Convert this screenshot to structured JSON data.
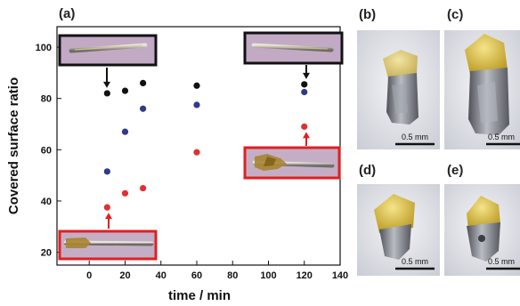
{
  "chart_data": {
    "type": "scatter",
    "panel_label": "(a)",
    "xlabel": "time / min",
    "ylabel": "Covered surface ratio",
    "xlim": [
      -18,
      140
    ],
    "ylim": [
      15,
      108
    ],
    "x_ticks": [
      0,
      20,
      40,
      60,
      80,
      100,
      120,
      140
    ],
    "y_ticks": [
      20,
      40,
      60,
      80,
      100
    ],
    "series": [
      {
        "color": "#111111",
        "points": [
          [
            10,
            82
          ],
          [
            20,
            83
          ],
          [
            30,
            86
          ],
          [
            60,
            85
          ],
          [
            120,
            85.5
          ]
        ]
      },
      {
        "color": "#2e3a8c",
        "points": [
          [
            10,
            51.5
          ],
          [
            20,
            67
          ],
          [
            30,
            76
          ],
          [
            60,
            77.5
          ],
          [
            120,
            82.5
          ]
        ]
      },
      {
        "color": "#e03030",
        "points": [
          [
            10,
            37.5
          ],
          [
            20,
            43
          ],
          [
            30,
            45
          ],
          [
            60,
            59
          ],
          [
            120,
            69
          ]
        ]
      }
    ],
    "grid": false,
    "legend": "none",
    "insets": [
      {
        "frame_color": "#111111",
        "arrow_color": "#111111",
        "arrow_to": [
          10,
          82
        ]
      },
      {
        "frame_color": "#111111",
        "arrow_color": "#111111",
        "arrow_to": [
          120,
          85.5
        ]
      },
      {
        "frame_color": "#e02020",
        "arrow_color": "#e02020",
        "arrow_to": [
          120,
          69
        ]
      },
      {
        "frame_color": "#e02020",
        "arrow_color": "#e02020",
        "arrow_to": [
          10,
          37.5
        ]
      }
    ]
  },
  "photo_panels": [
    {
      "label": "(b)",
      "scale_text": "0.5 mm"
    },
    {
      "label": "(c)",
      "scale_text": "0.5 mm"
    },
    {
      "label": "(d)",
      "scale_text": "0.5 mm"
    },
    {
      "label": "(e)",
      "scale_text": "0.5 mm"
    }
  ],
  "colors": {
    "inset_background": "#bfa9c3",
    "photo_background": "#dde1e8",
    "crystal_yellow": "#c9b24a",
    "crystal_metal": "#7b7f88"
  }
}
